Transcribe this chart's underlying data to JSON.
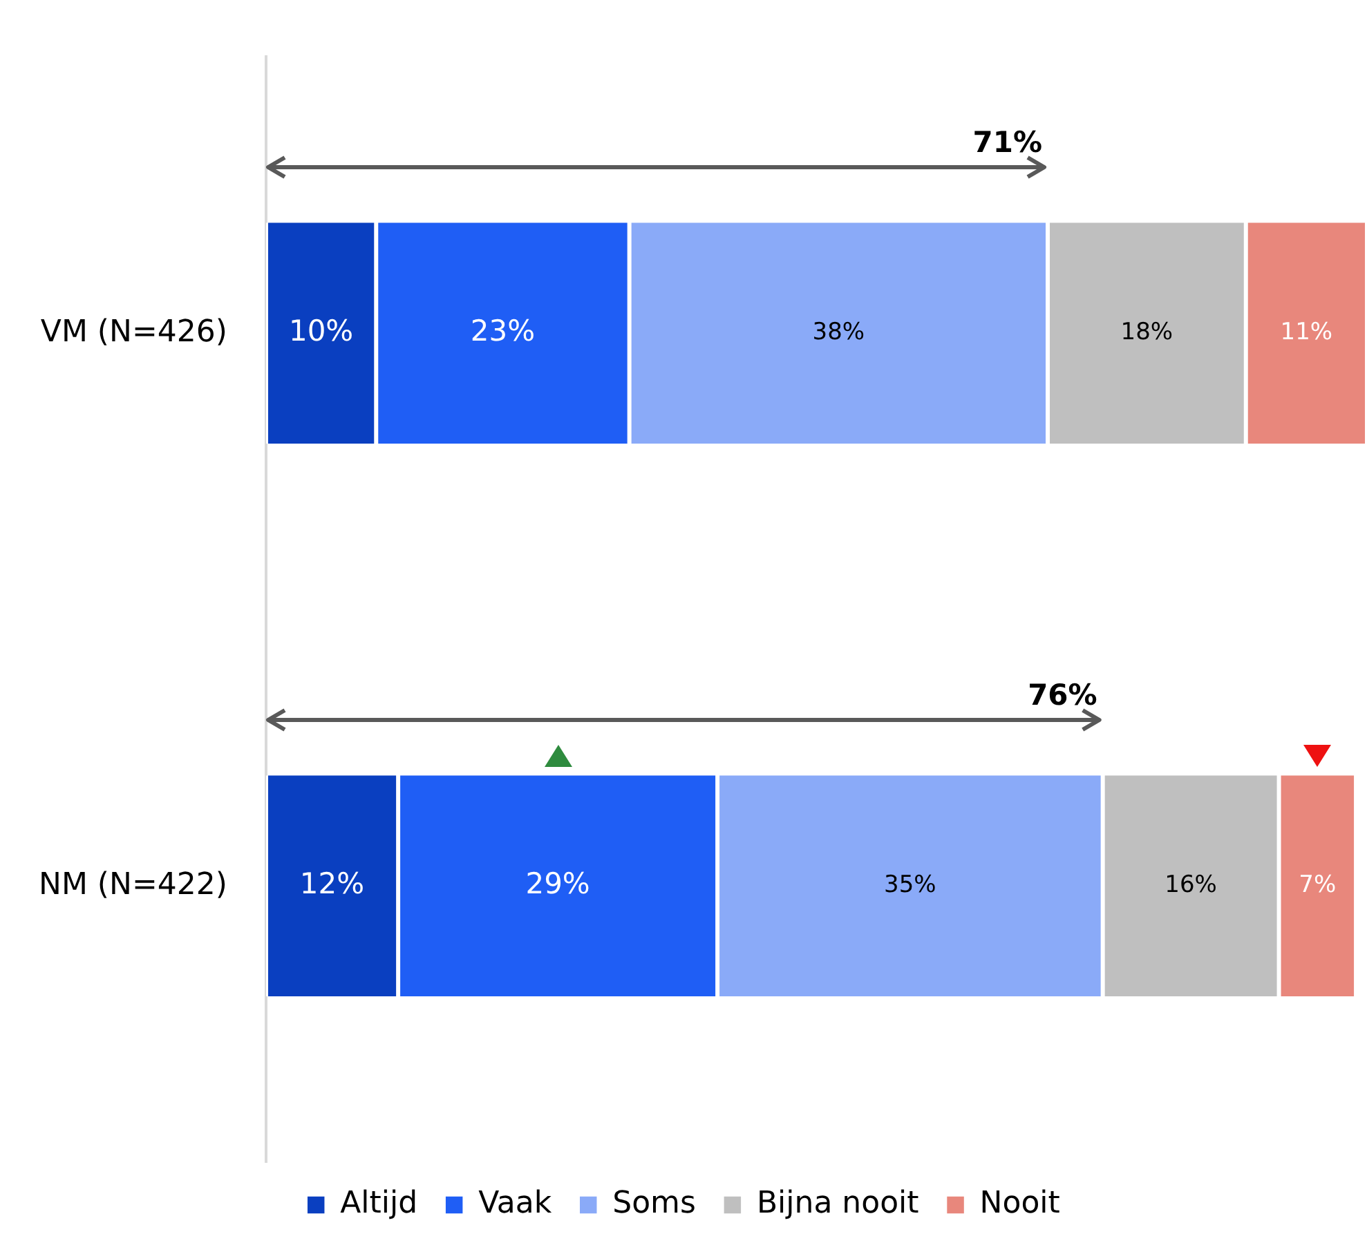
{
  "chart_data": {
    "type": "bar",
    "orientation": "horizontal",
    "stacked": true,
    "categories": [
      "VM (N=426)",
      "NM (N=422)"
    ],
    "series": [
      {
        "name": "Altijd",
        "color": "#0a3fc0",
        "values": [
          10,
          12
        ],
        "value_labels": [
          "10%",
          "12%"
        ]
      },
      {
        "name": "Vaak",
        "color": "#1f5ef5",
        "values": [
          23,
          29
        ],
        "value_labels": [
          "23%",
          "29%"
        ]
      },
      {
        "name": "Soms",
        "color": "#8aaaf8",
        "values": [
          38,
          35
        ],
        "value_labels": [
          "38%",
          "35%"
        ]
      },
      {
        "name": "Bijna nooit",
        "color": "#bfbfbf",
        "values": [
          18,
          16
        ],
        "value_labels": [
          "18%",
          "16%"
        ]
      },
      {
        "name": "Nooit",
        "color": "#e8877c",
        "values": [
          11,
          7
        ],
        "value_labels": [
          "11%",
          "7%"
        ]
      }
    ],
    "tick_labels": "y",
    "grid": false,
    "legend": "bottom",
    "annotations": [
      "71%",
      "76%"
    ]
  }
}
